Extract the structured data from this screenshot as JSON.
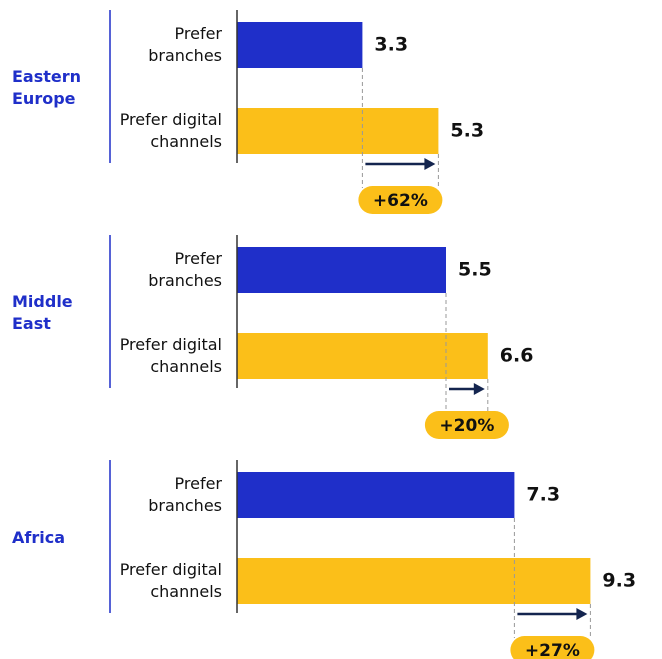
{
  "chart_data": [
    {
      "type": "bar",
      "orientation": "horizontal",
      "title": "Eastern Europe",
      "categories": [
        "Prefer branches",
        "Prefer digital channels"
      ],
      "values": [
        3.3,
        5.3
      ],
      "colors": [
        "#1f2fc9",
        "#fbbf19"
      ],
      "annotation": "+62%",
      "xlim": [
        0,
        10
      ]
    },
    {
      "type": "bar",
      "orientation": "horizontal",
      "title": "Middle East",
      "categories": [
        "Prefer branches",
        "Prefer digital channels"
      ],
      "values": [
        5.5,
        6.6
      ],
      "colors": [
        "#1f2fc9",
        "#fbbf19"
      ],
      "annotation": "+20%",
      "xlim": [
        0,
        10
      ]
    },
    {
      "type": "bar",
      "orientation": "horizontal",
      "title": "Africa",
      "categories": [
        "Prefer branches",
        "Prefer digital channels"
      ],
      "values": [
        7.3,
        9.3
      ],
      "colors": [
        "#1f2fc9",
        "#fbbf19"
      ],
      "annotation": "+27%",
      "xlim": [
        0,
        10
      ]
    }
  ]
}
